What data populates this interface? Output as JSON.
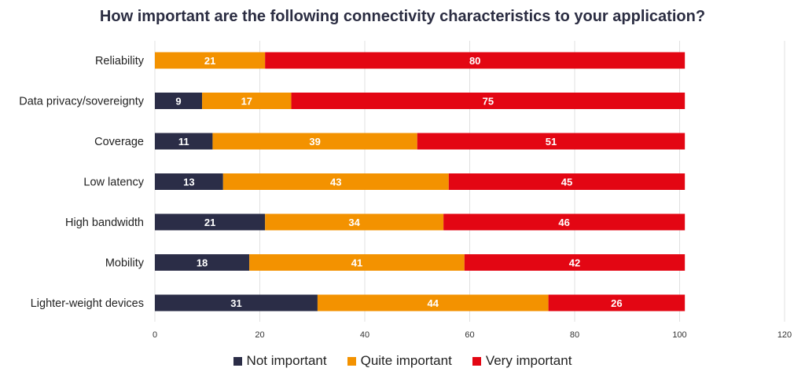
{
  "chart_data": {
    "type": "bar",
    "orientation": "horizontal",
    "stacked": true,
    "title": "How important are the following connectivity characteristics to your application?",
    "categories": [
      "Reliability",
      "Data privacy/sovereignty",
      "Coverage",
      "Low latency",
      "High bandwidth",
      "Mobility",
      "Lighter-weight devices"
    ],
    "series": [
      {
        "name": "Not important",
        "color": "#2b2d47",
        "values": [
          0,
          9,
          11,
          13,
          21,
          18,
          31
        ]
      },
      {
        "name": "Quite important",
        "color": "#f39200",
        "values": [
          21,
          17,
          39,
          43,
          34,
          41,
          44
        ]
      },
      {
        "name": "Very important",
        "color": "#e30613",
        "values": [
          80,
          75,
          51,
          45,
          46,
          42,
          26
        ]
      }
    ],
    "xlim": [
      0,
      120
    ],
    "xticks": [
      0,
      20,
      40,
      60,
      80,
      100,
      120
    ],
    "grid": true,
    "legend": "bottom"
  }
}
